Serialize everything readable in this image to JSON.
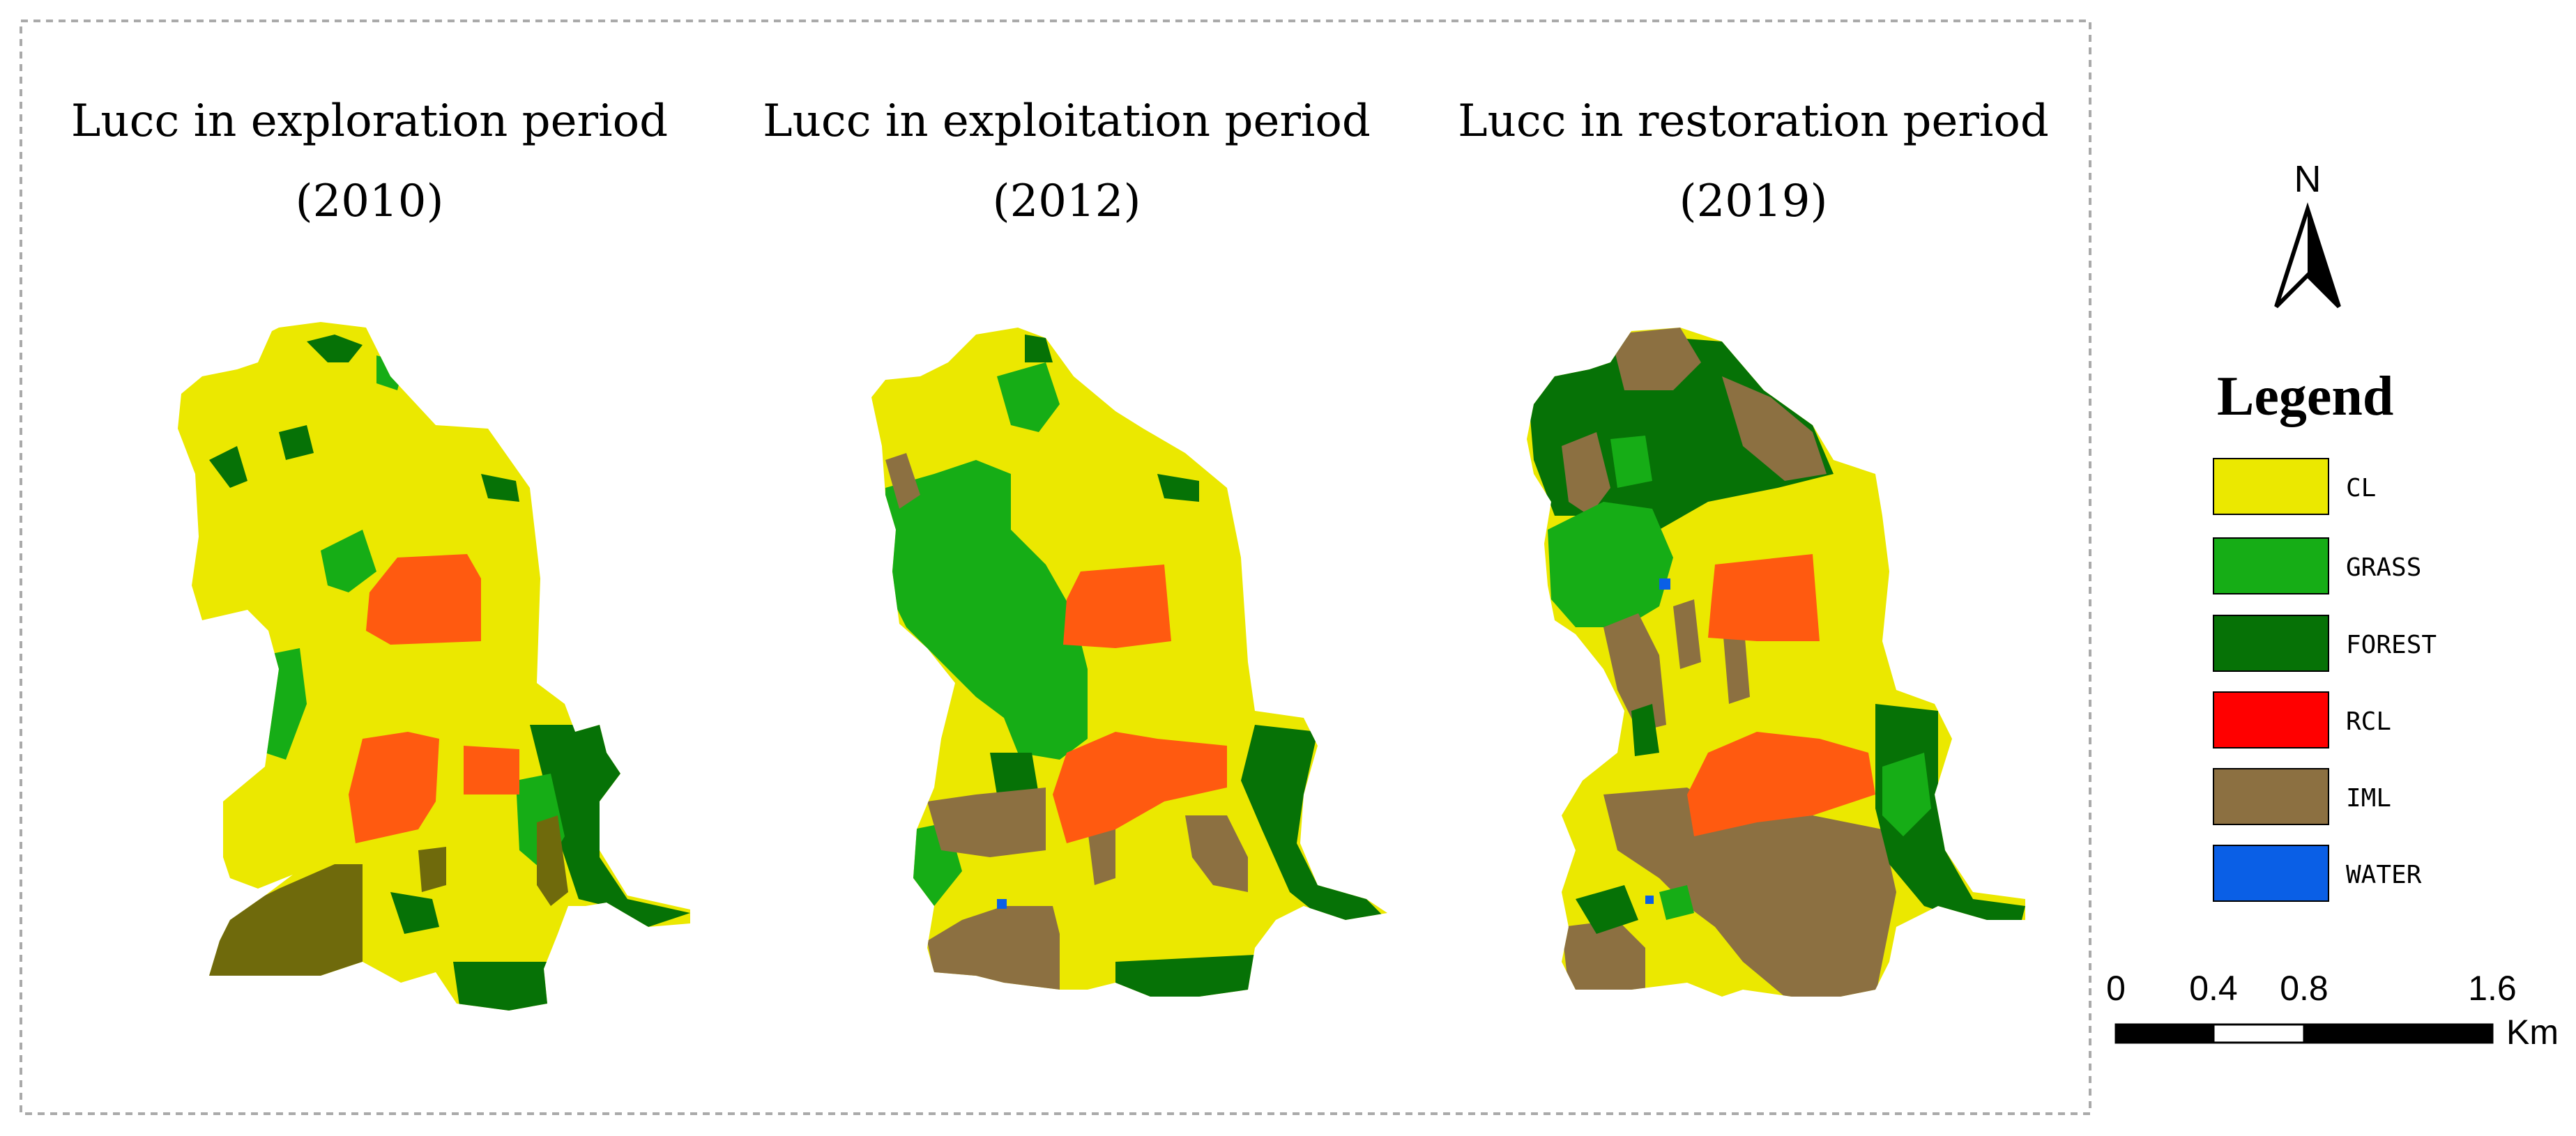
{
  "panels": [
    {
      "title_line1": "Lucc in exploration period",
      "title_line2": "(2010)"
    },
    {
      "title_line1": "Lucc in exploitation period",
      "title_line2": "(2012)"
    },
    {
      "title_line1": "Lucc in restoration period",
      "title_line2": "(2019)"
    }
  ],
  "north_label": "N",
  "legend": {
    "title": "Legend",
    "items": [
      {
        "label": "CL",
        "color": "#ebe800"
      },
      {
        "label": "GRASS",
        "color": "#16ad16"
      },
      {
        "label": "FOREST",
        "color": "#067206"
      },
      {
        "label": "RCL",
        "color": "#ff0000"
      },
      {
        "label": "IML",
        "color": "#8c7041"
      },
      {
        "label": "WATER",
        "color": "#0a5fe6"
      }
    ]
  },
  "scale_bar": {
    "ticks": [
      "0",
      "0.4",
      "0.8",
      "1.6"
    ],
    "unit": "Km"
  },
  "colors": {
    "cl": "#ebe800",
    "grass": "#16ad16",
    "forest": "#067206",
    "rcl_map": "#ff5a10",
    "iml": "#8c7041",
    "iml_2010": "#6f6a0c",
    "water": "#0a5fe6"
  }
}
